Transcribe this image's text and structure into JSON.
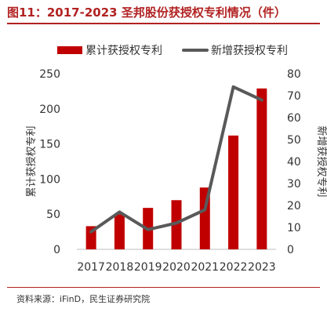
{
  "title": "图11：2017-2023 圣邦股份获授权专利情况（件）",
  "source": "资料来源：iFinD，民生证券研究院",
  "colors": {
    "bar": "#c00000",
    "line": "#595959",
    "accent": "#b22222"
  },
  "chart_data": {
    "type": "bar",
    "categories": [
      "2017",
      "2018",
      "2019",
      "2020",
      "2021",
      "2022",
      "2023"
    ],
    "series": [
      {
        "name": "累计获授权专利",
        "type": "bar",
        "axis": "left",
        "values": [
          33,
          50,
          59,
          70,
          88,
          162,
          229
        ]
      },
      {
        "name": "新增获授权专利",
        "type": "line",
        "axis": "right",
        "values": [
          8,
          17,
          9,
          12,
          18,
          74,
          68
        ]
      }
    ],
    "ylabel_left": "累计获授权专利",
    "ylabel_right": "新增获授权专利",
    "ylim_left": [
      0,
      250
    ],
    "ylim_right": [
      0,
      80
    ],
    "yticks_left": [
      0,
      50,
      100,
      150,
      200,
      250
    ],
    "yticks_right": [
      0,
      10,
      20,
      30,
      40,
      50,
      60,
      70,
      80
    ],
    "grid": false,
    "legend": "top"
  }
}
